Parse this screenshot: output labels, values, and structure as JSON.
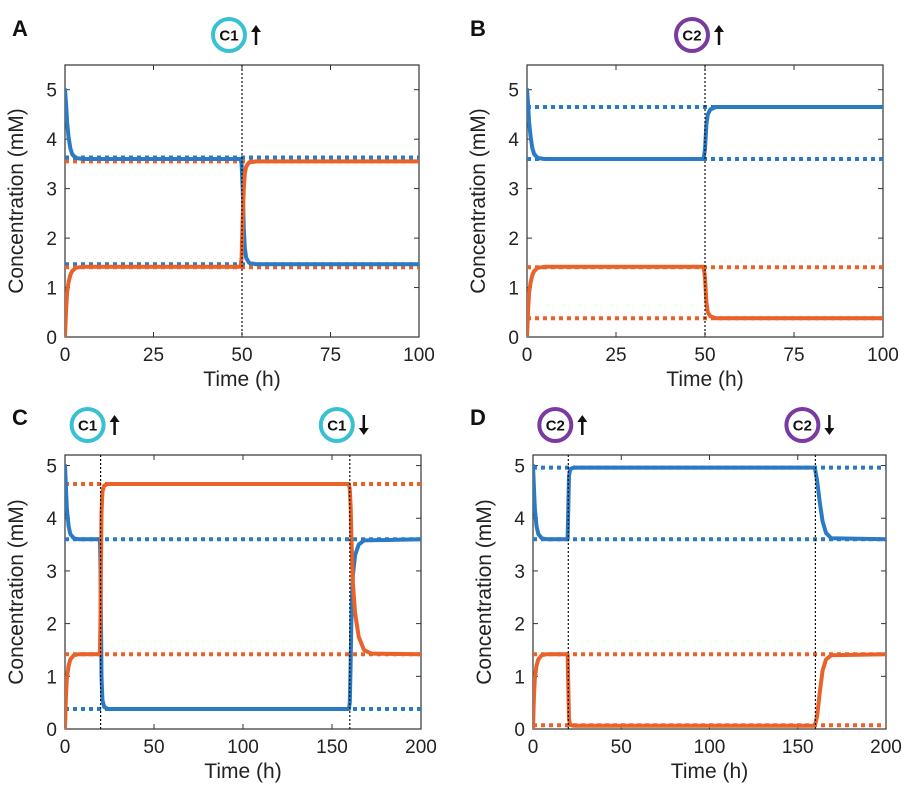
{
  "colors": {
    "blue": "#2b7bc4",
    "orange": "#e8622a",
    "c1_ring": "#37c1d3",
    "c2_ring": "#7b3aa0"
  },
  "chart_data": [
    {
      "panel": "A",
      "type": "line",
      "xlabel": "Time (h)",
      "ylabel": "Concentration (mM)",
      "xlim": [
        0,
        100
      ],
      "ylim": [
        0,
        5.5
      ],
      "xticks": [
        0,
        25,
        50,
        75,
        100
      ],
      "yticks": [
        0,
        1,
        2,
        3,
        4,
        5
      ],
      "grid": false,
      "events": [
        {
          "time": 50,
          "label": "C1",
          "direction": "up",
          "ring": "c1"
        }
      ],
      "series": [
        {
          "color": "blue",
          "style": "solid",
          "points": [
            [
              0,
              5.0
            ],
            [
              0.3,
              4.7
            ],
            [
              0.6,
              4.35
            ],
            [
              1,
              4.05
            ],
            [
              1.5,
              3.82
            ],
            [
              2,
              3.7
            ],
            [
              3,
              3.62
            ],
            [
              5,
              3.6
            ],
            [
              49.6,
              3.6
            ],
            [
              49.9,
              3.5
            ],
            [
              50.2,
              3.0
            ],
            [
              50.5,
              2.2
            ],
            [
              50.8,
              1.8
            ],
            [
              51.2,
              1.6
            ],
            [
              52,
              1.5
            ],
            [
              54,
              1.47
            ],
            [
              100,
              1.47
            ]
          ]
        },
        {
          "color": "orange",
          "style": "solid",
          "points": [
            [
              0,
              0
            ],
            [
              0.3,
              0.55
            ],
            [
              0.6,
              0.9
            ],
            [
              1,
              1.1
            ],
            [
              1.5,
              1.25
            ],
            [
              2,
              1.33
            ],
            [
              3,
              1.4
            ],
            [
              5,
              1.42
            ],
            [
              49.6,
              1.42
            ],
            [
              49.9,
              1.6
            ],
            [
              50.2,
              2.4
            ],
            [
              50.5,
              3.0
            ],
            [
              50.8,
              3.3
            ],
            [
              51.2,
              3.45
            ],
            [
              52,
              3.53
            ],
            [
              54,
              3.55
            ],
            [
              100,
              3.55
            ]
          ]
        },
        {
          "color": "blue",
          "style": "dotted",
          "points": [
            [
              0,
              3.63
            ],
            [
              100,
              3.63
            ]
          ]
        },
        {
          "color": "blue",
          "style": "dotted",
          "points": [
            [
              0,
              1.47
            ],
            [
              100,
              1.47
            ]
          ]
        },
        {
          "color": "orange",
          "style": "dotted",
          "points": [
            [
              0,
              3.55
            ],
            [
              100,
              3.55
            ]
          ]
        },
        {
          "color": "orange",
          "style": "dotted",
          "points": [
            [
              0,
              1.41
            ],
            [
              100,
              1.41
            ]
          ]
        }
      ]
    },
    {
      "panel": "B",
      "type": "line",
      "xlabel": "Time (h)",
      "ylabel": "Concentration (mM)",
      "xlim": [
        0,
        100
      ],
      "ylim": [
        0,
        5.5
      ],
      "xticks": [
        0,
        25,
        50,
        75,
        100
      ],
      "yticks": [
        0,
        1,
        2,
        3,
        4,
        5
      ],
      "grid": false,
      "events": [
        {
          "time": 50,
          "label": "C2",
          "direction": "up",
          "ring": "c2"
        }
      ],
      "series": [
        {
          "color": "blue",
          "style": "solid",
          "points": [
            [
              0,
              5.0
            ],
            [
              0.3,
              4.7
            ],
            [
              0.6,
              4.35
            ],
            [
              1,
              4.05
            ],
            [
              1.5,
              3.82
            ],
            [
              2,
              3.7
            ],
            [
              3,
              3.62
            ],
            [
              5,
              3.6
            ],
            [
              49.6,
              3.6
            ],
            [
              50,
              3.8
            ],
            [
              50.4,
              4.3
            ],
            [
              50.8,
              4.5
            ],
            [
              51.5,
              4.6
            ],
            [
              53,
              4.65
            ],
            [
              100,
              4.65
            ]
          ]
        },
        {
          "color": "orange",
          "style": "solid",
          "points": [
            [
              0,
              0
            ],
            [
              0.3,
              0.55
            ],
            [
              0.6,
              0.9
            ],
            [
              1,
              1.1
            ],
            [
              1.5,
              1.25
            ],
            [
              2,
              1.33
            ],
            [
              3,
              1.4
            ],
            [
              5,
              1.42
            ],
            [
              49.6,
              1.42
            ],
            [
              50,
              1.2
            ],
            [
              50.4,
              0.7
            ],
            [
              50.8,
              0.5
            ],
            [
              51.5,
              0.42
            ],
            [
              53,
              0.38
            ],
            [
              100,
              0.38
            ]
          ]
        },
        {
          "color": "blue",
          "style": "dotted",
          "points": [
            [
              0,
              4.65
            ],
            [
              100,
              4.65
            ]
          ]
        },
        {
          "color": "blue",
          "style": "dotted",
          "points": [
            [
              0,
              3.6
            ],
            [
              100,
              3.6
            ]
          ]
        },
        {
          "color": "orange",
          "style": "dotted",
          "points": [
            [
              0,
              1.41
            ],
            [
              100,
              1.41
            ]
          ]
        },
        {
          "color": "orange",
          "style": "dotted",
          "points": [
            [
              0,
              0.38
            ],
            [
              100,
              0.38
            ]
          ]
        }
      ]
    },
    {
      "panel": "C",
      "type": "line",
      "xlabel": "Time (h)",
      "ylabel": "Concentration (mM)",
      "xlim": [
        0,
        200
      ],
      "ylim": [
        0,
        5.2
      ],
      "xticks": [
        0,
        50,
        100,
        150,
        200
      ],
      "yticks": [
        0,
        1,
        2,
        3,
        4,
        5
      ],
      "grid": false,
      "events": [
        {
          "time": 20,
          "label": "C1",
          "direction": "up",
          "ring": "c1"
        },
        {
          "time": 160,
          "label": "C1",
          "direction": "down",
          "ring": "c1"
        }
      ],
      "series": [
        {
          "color": "blue",
          "style": "solid",
          "points": [
            [
              0,
              5.0
            ],
            [
              0.5,
              4.6
            ],
            [
              1,
              4.2
            ],
            [
              2,
              3.85
            ],
            [
              3,
              3.7
            ],
            [
              5,
              3.62
            ],
            [
              8,
              3.6
            ],
            [
              19.6,
              3.6
            ],
            [
              19.9,
              3.2
            ],
            [
              20.2,
              2.0
            ],
            [
              20.5,
              1.0
            ],
            [
              21,
              0.55
            ],
            [
              22,
              0.42
            ],
            [
              24,
              0.38
            ],
            [
              159.5,
              0.38
            ],
            [
              160,
              0.5
            ],
            [
              160.5,
              1.3
            ],
            [
              161,
              2.3
            ],
            [
              161.7,
              2.9
            ],
            [
              163,
              3.3
            ],
            [
              165,
              3.5
            ],
            [
              168,
              3.58
            ],
            [
              200,
              3.6
            ]
          ]
        },
        {
          "color": "orange",
          "style": "solid",
          "points": [
            [
              0,
              0
            ],
            [
              0.5,
              0.6
            ],
            [
              1,
              0.95
            ],
            [
              2,
              1.2
            ],
            [
              3,
              1.32
            ],
            [
              5,
              1.4
            ],
            [
              8,
              1.42
            ],
            [
              19.6,
              1.42
            ],
            [
              19.9,
              2.0
            ],
            [
              20.2,
              3.2
            ],
            [
              20.5,
              4.1
            ],
            [
              21,
              4.5
            ],
            [
              22,
              4.62
            ],
            [
              24,
              4.65
            ],
            [
              159.5,
              4.65
            ],
            [
              160,
              4.55
            ],
            [
              160.5,
              4.2
            ],
            [
              161,
              3.5
            ],
            [
              161.7,
              2.8
            ],
            [
              163,
              2.2
            ],
            [
              165,
              1.75
            ],
            [
              168,
              1.5
            ],
            [
              172,
              1.43
            ],
            [
              200,
              1.42
            ]
          ]
        },
        {
          "color": "blue",
          "style": "dotted",
          "points": [
            [
              0,
              3.6
            ],
            [
              200,
              3.6
            ]
          ]
        },
        {
          "color": "blue",
          "style": "dotted",
          "points": [
            [
              0,
              0.38
            ],
            [
              200,
              0.38
            ]
          ]
        },
        {
          "color": "orange",
          "style": "dotted",
          "points": [
            [
              0,
              4.65
            ],
            [
              200,
              4.65
            ]
          ]
        },
        {
          "color": "orange",
          "style": "dotted",
          "points": [
            [
              0,
              1.42
            ],
            [
              200,
              1.42
            ]
          ]
        }
      ]
    },
    {
      "panel": "D",
      "type": "line",
      "xlabel": "Time (h)",
      "ylabel": "Concentration (mM)",
      "xlim": [
        0,
        200
      ],
      "ylim": [
        0,
        5.2
      ],
      "xticks": [
        0,
        50,
        100,
        150,
        200
      ],
      "yticks": [
        0,
        1,
        2,
        3,
        4,
        5
      ],
      "grid": false,
      "events": [
        {
          "time": 20,
          "label": "C2",
          "direction": "up",
          "ring": "c2"
        },
        {
          "time": 160,
          "label": "C2",
          "direction": "down",
          "ring": "c2"
        }
      ],
      "series": [
        {
          "color": "blue",
          "style": "solid",
          "points": [
            [
              0,
              5.0
            ],
            [
              0.5,
              4.6
            ],
            [
              1,
              4.2
            ],
            [
              2,
              3.85
            ],
            [
              3,
              3.7
            ],
            [
              5,
              3.62
            ],
            [
              8,
              3.6
            ],
            [
              19.6,
              3.6
            ],
            [
              20,
              4.2
            ],
            [
              20.4,
              4.8
            ],
            [
              21,
              4.93
            ],
            [
              23,
              4.96
            ],
            [
              159.5,
              4.96
            ],
            [
              160,
              4.9
            ],
            [
              161,
              4.7
            ],
            [
              162.5,
              4.3
            ],
            [
              164,
              3.95
            ],
            [
              166,
              3.72
            ],
            [
              169,
              3.62
            ],
            [
              200,
              3.6
            ]
          ]
        },
        {
          "color": "orange",
          "style": "solid",
          "points": [
            [
              0,
              0
            ],
            [
              0.5,
              0.6
            ],
            [
              1,
              0.95
            ],
            [
              2,
              1.2
            ],
            [
              3,
              1.32
            ],
            [
              5,
              1.4
            ],
            [
              8,
              1.42
            ],
            [
              19.6,
              1.42
            ],
            [
              20,
              0.8
            ],
            [
              20.4,
              0.2
            ],
            [
              21,
              0.08
            ],
            [
              23,
              0.06
            ],
            [
              159.5,
              0.06
            ],
            [
              160,
              0.1
            ],
            [
              161,
              0.25
            ],
            [
              162.5,
              0.7
            ],
            [
              164,
              1.1
            ],
            [
              166,
              1.32
            ],
            [
              169,
              1.4
            ],
            [
              200,
              1.42
            ]
          ]
        },
        {
          "color": "blue",
          "style": "dotted",
          "points": [
            [
              0,
              4.96
            ],
            [
              200,
              4.96
            ]
          ]
        },
        {
          "color": "blue",
          "style": "dotted",
          "points": [
            [
              0,
              3.6
            ],
            [
              200,
              3.6
            ]
          ]
        },
        {
          "color": "orange",
          "style": "dotted",
          "points": [
            [
              0,
              1.42
            ],
            [
              200,
              1.42
            ]
          ]
        },
        {
          "color": "orange",
          "style": "dotted",
          "points": [
            [
              0,
              0.07
            ],
            [
              200,
              0.07
            ]
          ]
        }
      ]
    }
  ]
}
